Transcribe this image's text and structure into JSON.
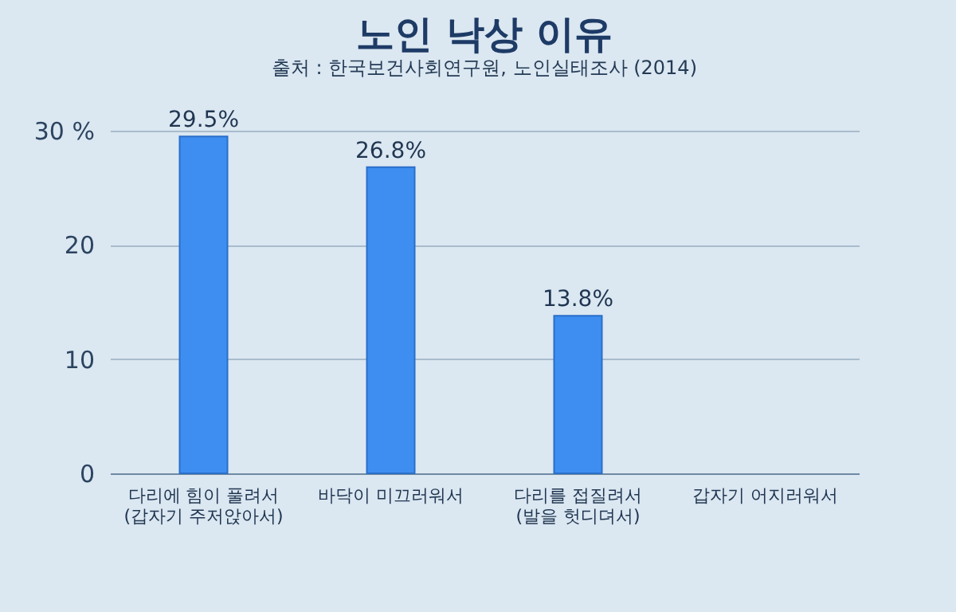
{
  "chart_data": {
    "type": "bar",
    "title": "노인 낙상 이유",
    "annotations": [
      "출처 : 한국보건사회연구원, 노인실태조사 (2014)"
    ],
    "categories": [
      "다리에 힘이 풀려서\n(갑자기 주저앉아서)",
      "바닥이 미끄러워서",
      "다리를 접질려서\n(발을 헛디뎌서)",
      "갑자기 어지러워서"
    ],
    "values": [
      29.5,
      26.8,
      13.8,
      null
    ],
    "value_labels": [
      "29.5%",
      "26.8%",
      "13.8%",
      null
    ],
    "color": "#3d8ef0",
    "ylim": [
      0,
      30
    ],
    "yticks": [
      0,
      10,
      20,
      {
        "value": 30,
        "label": "30 %"
      }
    ],
    "grid": "y"
  }
}
